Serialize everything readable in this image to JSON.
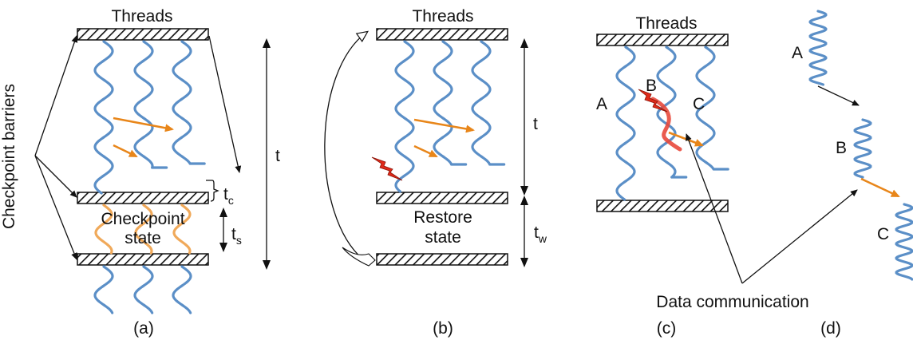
{
  "colors": {
    "thread": "#5b8fc7",
    "communication": "#e8861a",
    "checkpoint_state": "#f0a95a",
    "failure": "#e02a1a",
    "failure_trace": "#e8493c",
    "ink": "#111111"
  },
  "icons": {
    "barrier": "hatched-bar",
    "failure": "lightning-bolt-icon"
  },
  "panel_a": {
    "threads_label": "Threads",
    "side_label": "Checkpoint barriers",
    "state_label_line1": "Checkpoint",
    "state_label_line2": "state",
    "t_label": "t",
    "tc_main": "t",
    "tc_sub": "c",
    "ts_main": "t",
    "ts_sub": "s",
    "caption": "(a)"
  },
  "panel_b": {
    "threads_label": "Threads",
    "state_label_line1": "Restore",
    "state_label_line2": "state",
    "t_label": "t",
    "tw_main": "t",
    "tw_sub": "w",
    "caption": "(b)"
  },
  "panel_c": {
    "threads_label": "Threads",
    "thread_a": "A",
    "thread_b": "B",
    "thread_c": "C",
    "comm_label": "Data communication",
    "caption": "(c)"
  },
  "panel_d": {
    "thread_a": "A",
    "thread_b": "B",
    "thread_c": "C",
    "caption": "(d)"
  }
}
